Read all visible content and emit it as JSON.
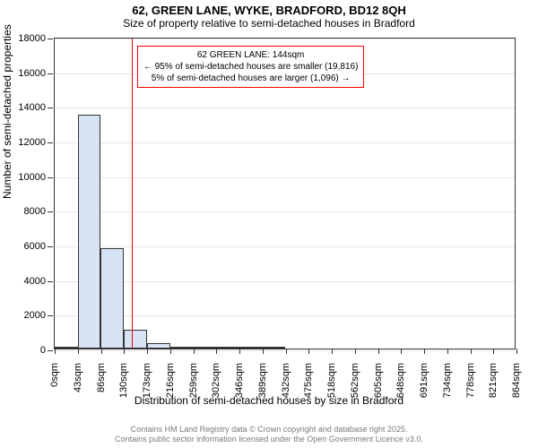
{
  "title": "62, GREEN LANE, WYKE, BRADFORD, BD12 8QH",
  "subtitle": "Size of property relative to semi-detached houses in Bradford",
  "chart": {
    "type": "histogram",
    "ylabel": "Number of semi-detached properties",
    "xlabel": "Distribution of semi-detached houses by size in Bradford",
    "ylim": [
      0,
      18000
    ],
    "ytick_step": 2000,
    "yticks": [
      0,
      2000,
      4000,
      6000,
      8000,
      10000,
      12000,
      14000,
      16000,
      18000
    ],
    "xticks": [
      "0sqm",
      "43sqm",
      "86sqm",
      "130sqm",
      "173sqm",
      "216sqm",
      "259sqm",
      "302sqm",
      "346sqm",
      "389sqm",
      "432sqm",
      "475sqm",
      "518sqm",
      "562sqm",
      "605sqm",
      "648sqm",
      "691sqm",
      "734sqm",
      "778sqm",
      "821sqm",
      "864sqm"
    ],
    "xmax_value": 864,
    "bar_color": "#d6e4f5",
    "bar_border_color": "#333333",
    "grid_color": "#e8e8e8",
    "background_color": "#ffffff",
    "reference_line_x": 144,
    "reference_line_color": "#ff0000",
    "bars": [
      {
        "x_start": 0,
        "x_end": 43,
        "value": 50
      },
      {
        "x_start": 43,
        "x_end": 86,
        "value": 13500
      },
      {
        "x_start": 86,
        "x_end": 130,
        "value": 5800
      },
      {
        "x_start": 130,
        "x_end": 173,
        "value": 1100
      },
      {
        "x_start": 173,
        "x_end": 216,
        "value": 300
      },
      {
        "x_start": 216,
        "x_end": 259,
        "value": 120
      },
      {
        "x_start": 259,
        "x_end": 302,
        "value": 60
      },
      {
        "x_start": 302,
        "x_end": 346,
        "value": 30
      },
      {
        "x_start": 346,
        "x_end": 389,
        "value": 15
      },
      {
        "x_start": 389,
        "x_end": 432,
        "value": 10
      }
    ],
    "annotation": {
      "line1": "62 GREEN LANE: 144sqm",
      "line2": "← 95% of semi-detached houses are smaller (19,816)",
      "line3": "5% of semi-detached houses are larger (1,096) →",
      "border_color": "#ff0000"
    }
  },
  "footer": {
    "line1": "Contains HM Land Registry data © Crown copyright and database right 2025.",
    "line2": "Contains public sector information licensed under the Open Government Licence v3.0."
  }
}
